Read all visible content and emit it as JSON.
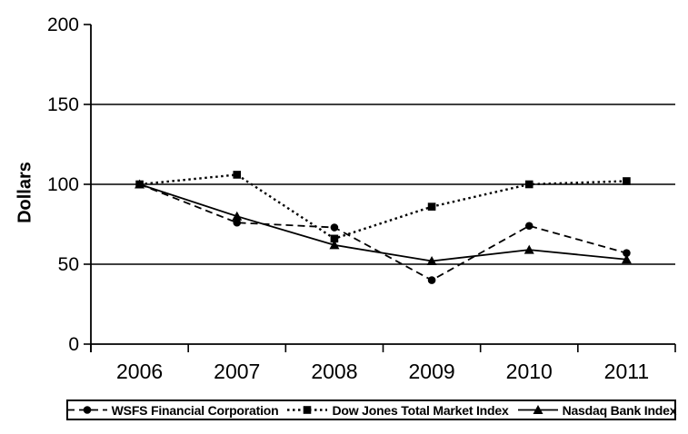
{
  "chart_data": {
    "type": "line",
    "title": "",
    "xlabel": "",
    "ylabel": "Dollars",
    "categories": [
      "2006",
      "2007",
      "2008",
      "2009",
      "2010",
      "2011"
    ],
    "series": [
      {
        "name": "WSFS Financial Corporation",
        "marker": "circle",
        "line_style": "dashed",
        "color": "#000000",
        "values": [
          100,
          76,
          73,
          40,
          74,
          57
        ]
      },
      {
        "name": "Dow Jones Total Market Index",
        "marker": "square",
        "line_style": "dotted",
        "color": "#000000",
        "values": [
          100,
          106,
          66,
          86,
          100,
          102
        ]
      },
      {
        "name": "Nasdaq Bank Index",
        "marker": "triangle",
        "line_style": "solid",
        "color": "#000000",
        "values": [
          100,
          80,
          62,
          52,
          59,
          53
        ]
      }
    ],
    "y_axis": {
      "min": 0,
      "max": 200,
      "tick_step": 50,
      "tick_labels": [
        "0",
        "50",
        "100",
        "150",
        "200"
      ],
      "gridlines": [
        50,
        100,
        150
      ]
    },
    "grid": "horizontal",
    "legend_position": "bottom"
  },
  "colors": {
    "background": "#ffffff",
    "axis": "#000000",
    "text": "#000000"
  }
}
